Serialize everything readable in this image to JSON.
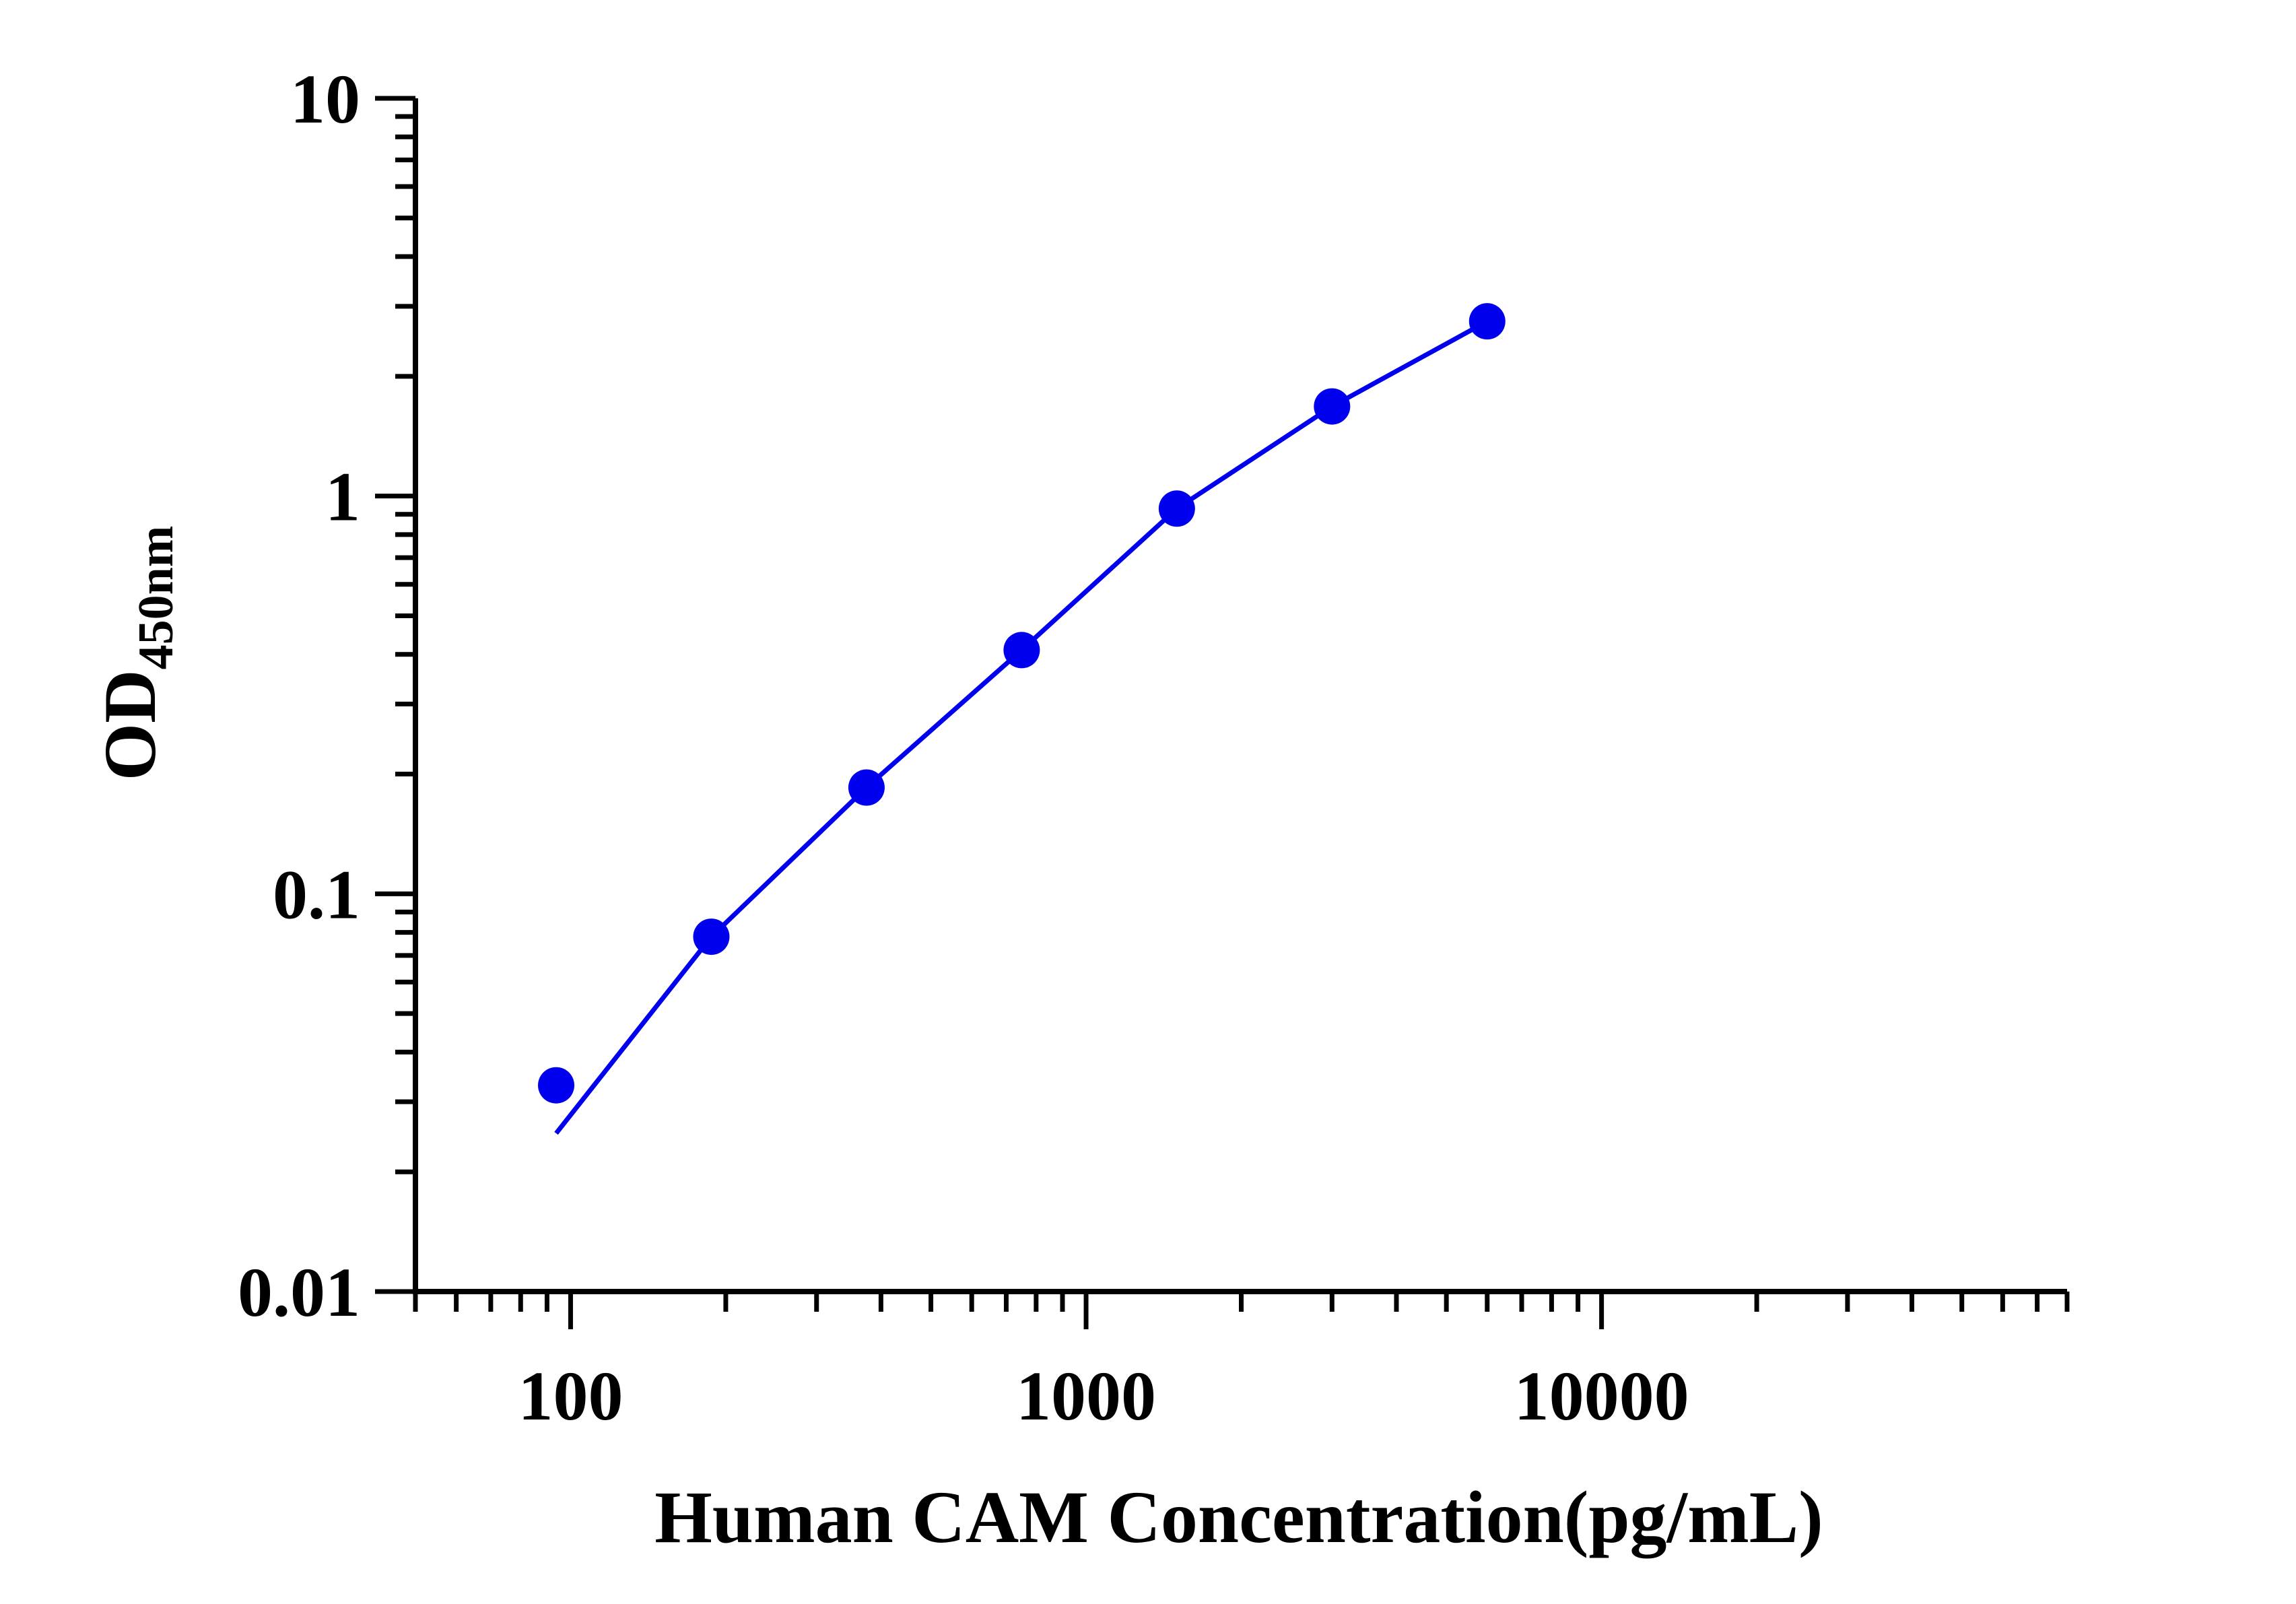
{
  "chart_data": {
    "type": "scatter",
    "xlabel": "Human CAM Concentration(pg/mL)",
    "ylabel": {
      "main": "OD",
      "subscript": "450nm"
    },
    "x_scale": "log",
    "y_scale": "log",
    "xlim": [
      50,
      80000
    ],
    "ylim": [
      0.01,
      10
    ],
    "x_ticks": [
      100,
      1000,
      10000
    ],
    "x_tick_labels": [
      "100",
      "1000",
      "10000"
    ],
    "y_ticks": [
      0.01,
      0.1,
      1,
      10
    ],
    "y_tick_labels": [
      "0.01",
      "0.1",
      "1",
      "10"
    ],
    "grid": false,
    "colors": {
      "series": "#0000ee",
      "axis": "#000000"
    },
    "series": [
      {
        "x": [
          93.75,
          187.5,
          375,
          750,
          1500,
          3000,
          6000
        ],
        "y": [
          0.033,
          0.078,
          0.185,
          0.41,
          0.93,
          1.68,
          2.75
        ],
        "marker": "circle"
      }
    ],
    "fit_curve": {
      "x": [
        93.75,
        187.5,
        375,
        750,
        1500,
        3000,
        6000
      ],
      "y": [
        0.025,
        0.078,
        0.185,
        0.41,
        0.93,
        1.68,
        2.75
      ]
    }
  }
}
